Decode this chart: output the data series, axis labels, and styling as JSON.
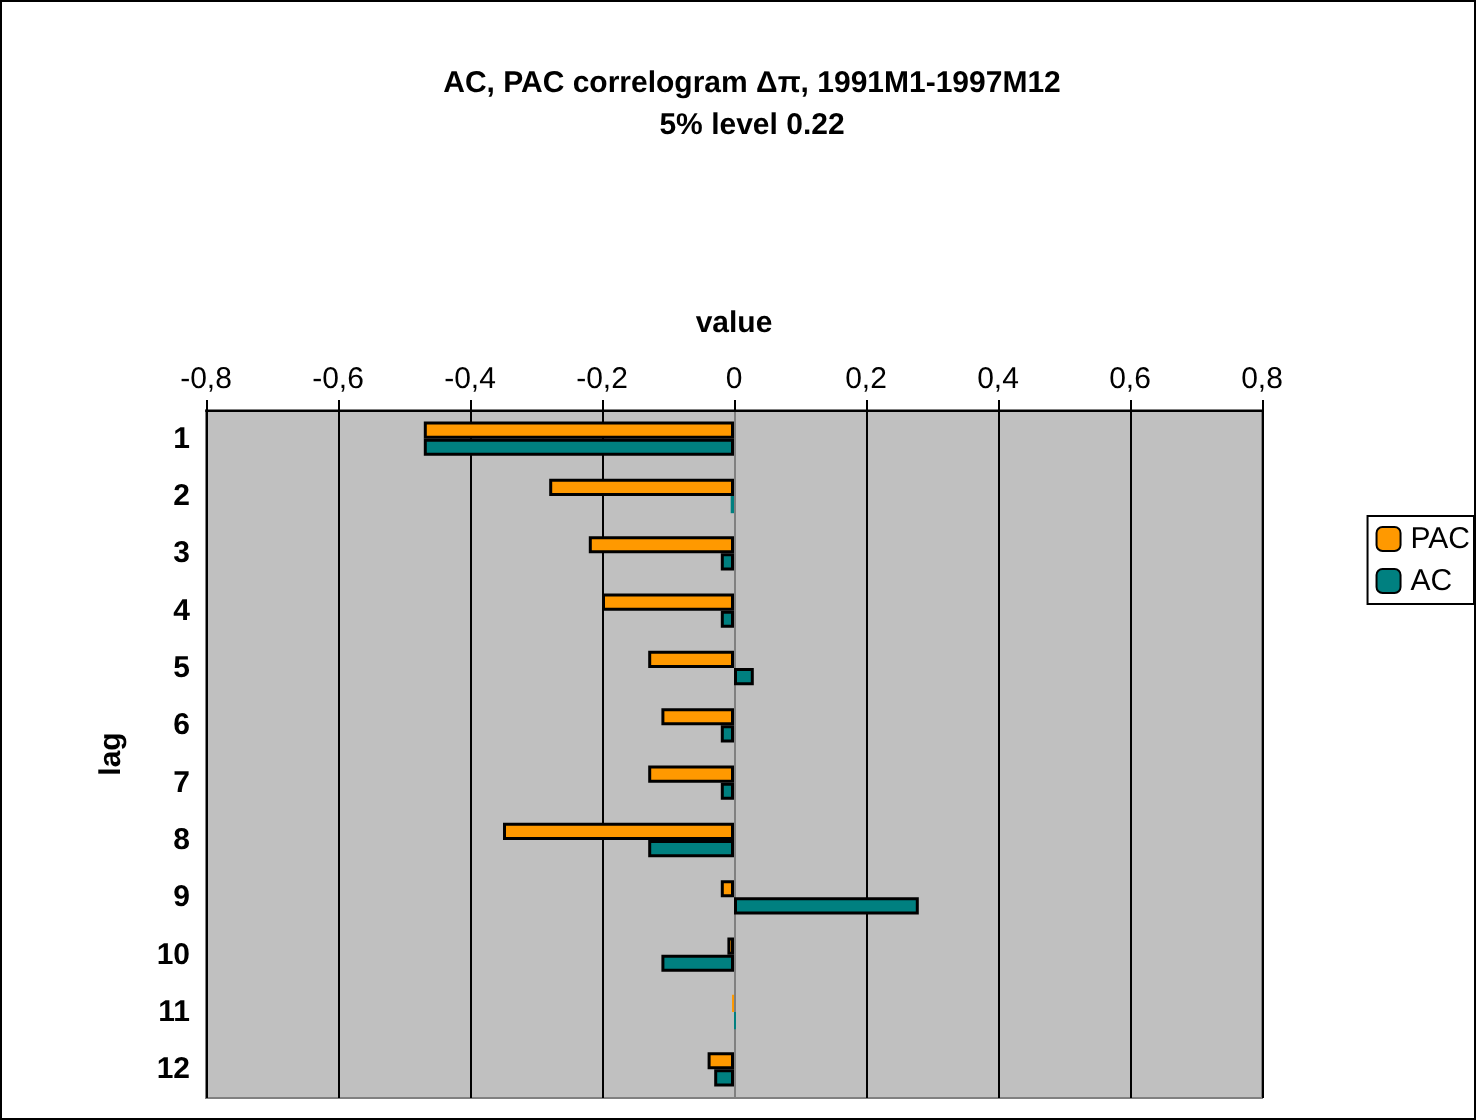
{
  "chart_data": {
    "type": "bar",
    "orientation": "horizontal",
    "title": "AC, PAC correlogram Δπ, 1991M1-1997M12",
    "subtitle": "5% level 0.22",
    "xlabel": "value",
    "ylabel": "lag",
    "categories": [
      "1",
      "2",
      "3",
      "4",
      "5",
      "6",
      "7",
      "8",
      "9",
      "10",
      "11",
      "12"
    ],
    "series": [
      {
        "name": "PAC",
        "color": "#ff9900",
        "values": [
          -0.47,
          -0.28,
          -0.22,
          -0.2,
          -0.13,
          -0.11,
          -0.13,
          -0.35,
          -0.02,
          -0.01,
          -0.003,
          -0.04
        ]
      },
      {
        "name": "AC",
        "color": "#008080",
        "values": [
          -0.47,
          -0.005,
          -0.02,
          -0.02,
          0.03,
          -0.02,
          -0.02,
          -0.13,
          0.28,
          -0.11,
          0.003,
          -0.03
        ]
      }
    ],
    "xlim": [
      -0.8,
      0.8
    ],
    "xticks": [
      {
        "value": -0.8,
        "label": "-0,8"
      },
      {
        "value": -0.6,
        "label": "-0,6"
      },
      {
        "value": -0.4,
        "label": "-0,4"
      },
      {
        "value": -0.2,
        "label": "-0,2"
      },
      0,
      {
        "value": 0.2,
        "label": "0,2"
      },
      {
        "value": 0.4,
        "label": "0,4"
      },
      {
        "value": 0.6,
        "label": "0,6"
      },
      {
        "value": 0.8,
        "label": "0,8"
      }
    ],
    "grid": "x",
    "legend": "right"
  }
}
